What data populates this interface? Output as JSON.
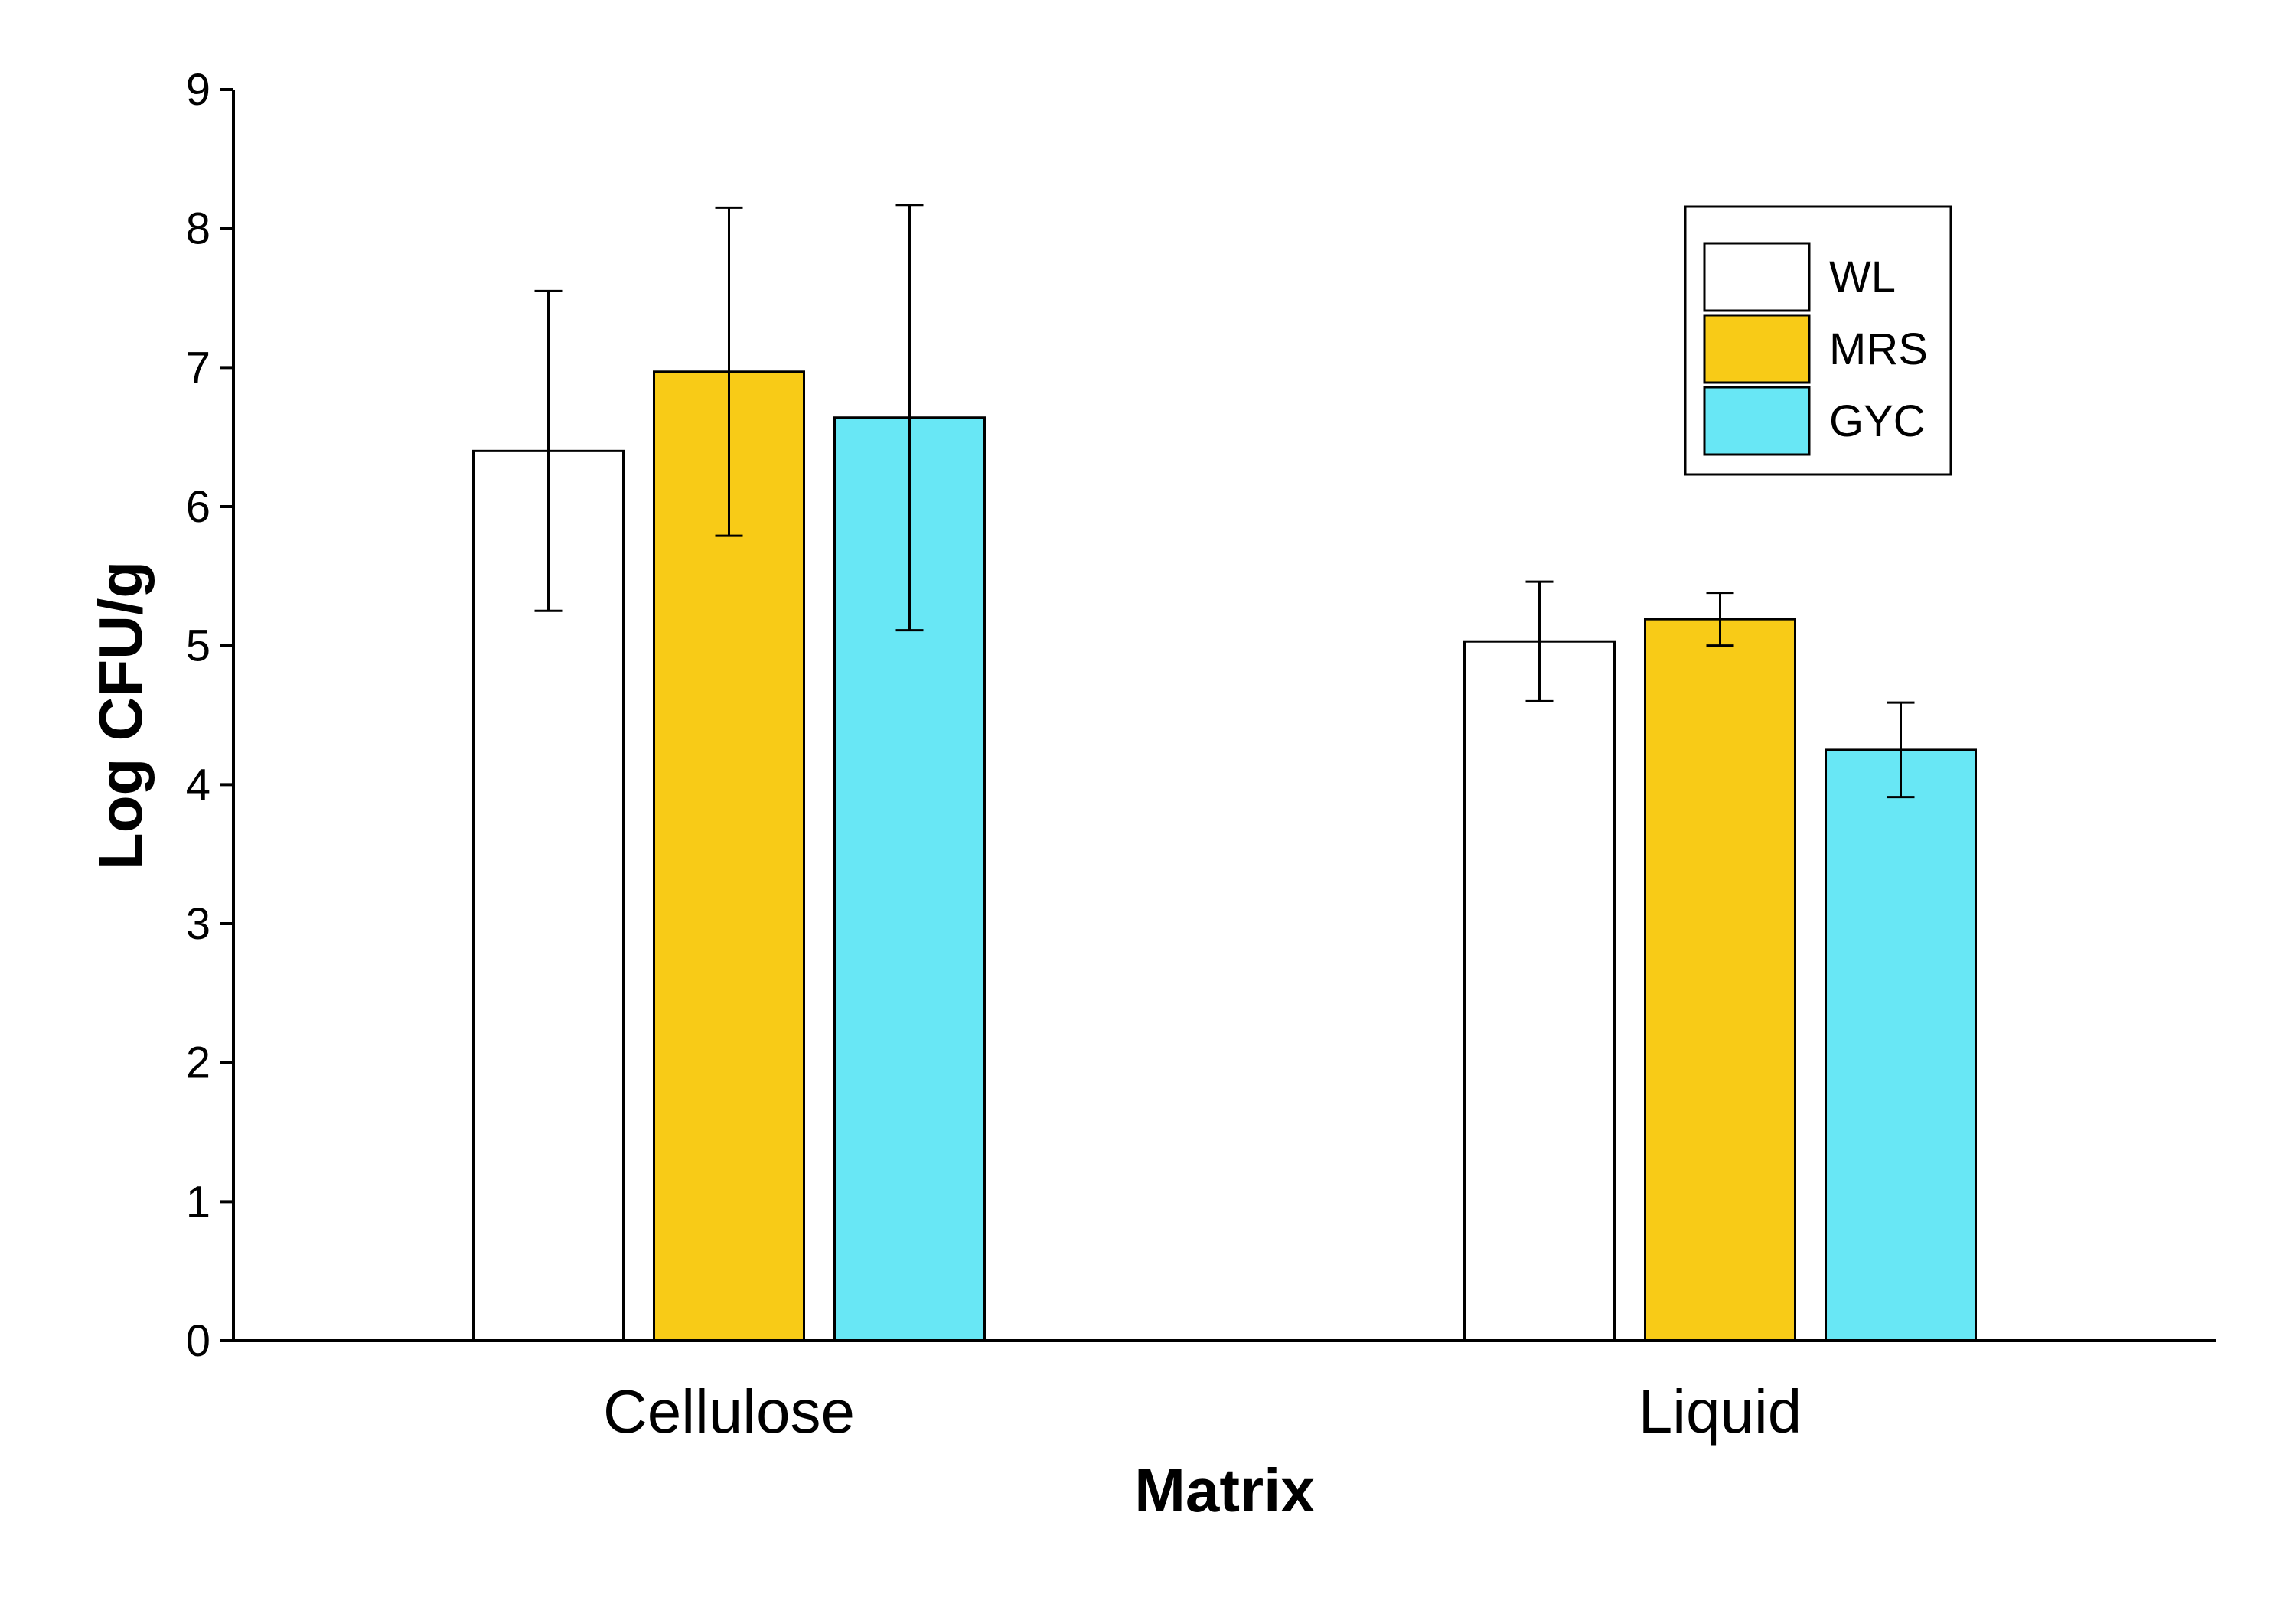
{
  "chart_data": {
    "type": "bar",
    "xlabel": "Matrix",
    "ylabel": "Log CFU/g",
    "ylim": [
      0,
      9
    ],
    "yticks": [
      0,
      1,
      2,
      3,
      4,
      5,
      6,
      7,
      8,
      9
    ],
    "categories": [
      "Cellulose",
      "Liquid"
    ],
    "series": [
      {
        "name": "WL",
        "color": "#FFFFFF",
        "values": [
          6.4,
          5.03
        ],
        "errors": [
          1.15,
          0.43
        ]
      },
      {
        "name": "MRS",
        "color": "#F8CB17",
        "values": [
          6.97,
          5.19
        ],
        "errors": [
          1.18,
          0.19
        ]
      },
      {
        "name": "GYC",
        "color": "#68E7F5",
        "values": [
          6.64,
          4.25
        ],
        "errors": [
          1.53,
          0.34
        ]
      }
    ],
    "legend_position": "top-right",
    "grid": false
  }
}
